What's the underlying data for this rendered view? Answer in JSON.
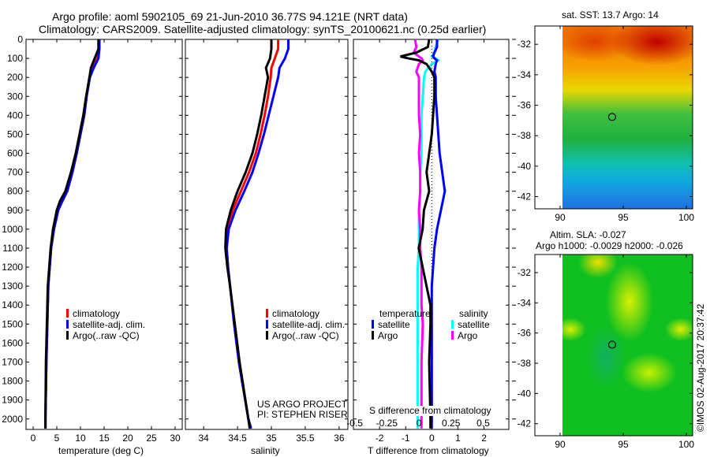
{
  "title": {
    "line1": "Argo profile: aoml 5902105_69 21-Jun-2010 36.77S 94.121E (NRT data)",
    "line2": "Climatology: CARS2009. Satellite-adjusted climatology: synTS_20100621.nc (0.25d earlier)"
  },
  "colors": {
    "climatology": "#ff0000",
    "satellite": "#0000ff",
    "argo": "#000000",
    "sal_satellite": "#00ffff",
    "sal_argo": "#ff00ff"
  },
  "chart_data": [
    {
      "type": "line",
      "name": "temperature-profile",
      "xlabel": "temperature (deg C)",
      "ylabel": "",
      "xlim": [
        -1.5,
        31.5
      ],
      "ylim": [
        2055,
        0
      ],
      "xticks": [
        "0",
        "5",
        "10",
        "15",
        "20",
        "25",
        "30"
      ],
      "yticks": [
        "0",
        "100",
        "200",
        "300",
        "400",
        "500",
        "600",
        "700",
        "800",
        "900",
        "1000",
        "1100",
        "1200",
        "1300",
        "1400",
        "1500",
        "1600",
        "1700",
        "1800",
        "1900",
        "2000"
      ],
      "depth": [
        0,
        50,
        100,
        150,
        200,
        300,
        400,
        500,
        600,
        700,
        800,
        850,
        900,
        1000,
        1100,
        1200,
        1300,
        1500,
        1700,
        2000,
        2050
      ],
      "series": [
        {
          "name": "climatology",
          "values": [
            13.9,
            13.9,
            13.6,
            12.6,
            11.9,
            11.3,
            10.8,
            10.0,
            9.2,
            8.3,
            7.2,
            6.2,
            5.3,
            4.4,
            3.8,
            3.5,
            3.2,
            3.0,
            2.8,
            2.6,
            2.6
          ]
        },
        {
          "name": "satellite-adj. clim.",
          "values": [
            14.0,
            14.0,
            13.8,
            12.8,
            12.0,
            11.3,
            10.8,
            10.0,
            9.2,
            8.3,
            7.2,
            6.2,
            5.3,
            4.4,
            3.8,
            3.5,
            3.2,
            3.0,
            2.8,
            2.6,
            2.6
          ]
        },
        {
          "name": "Argo(..raw -QC)",
          "values": [
            13.8,
            13.8,
            13.0,
            12.2,
            11.9,
            11.2,
            10.6,
            9.8,
            9.0,
            8.0,
            6.8,
            5.7,
            5.0,
            4.2,
            3.7,
            3.4,
            3.1,
            2.9,
            2.7,
            2.6,
            2.6
          ]
        }
      ],
      "legend": [
        "climatology",
        "satellite-adj. clim.",
        "Argo(..raw -QC)"
      ]
    },
    {
      "type": "line",
      "name": "salinity-profile",
      "xlabel": "salinity",
      "xlim": [
        33.73,
        36.13
      ],
      "ylim": [
        2055,
        0
      ],
      "xticks": [
        "34",
        "34.5",
        "35",
        "35.5",
        "36"
      ],
      "depth": [
        0,
        50,
        100,
        150,
        200,
        300,
        400,
        500,
        600,
        700,
        800,
        900,
        1000,
        1100,
        1200,
        1300,
        1500,
        1700,
        2000,
        2050
      ],
      "series": [
        {
          "name": "climatology",
          "values": [
            35.1,
            35.1,
            35.05,
            35.0,
            34.99,
            34.95,
            34.9,
            34.84,
            34.77,
            34.67,
            34.55,
            34.43,
            34.36,
            34.34,
            34.36,
            34.39,
            34.45,
            34.52,
            34.66,
            34.7
          ]
        },
        {
          "name": "satellite-adj. clim.",
          "values": [
            35.25,
            35.25,
            35.2,
            35.12,
            35.1,
            35.03,
            34.96,
            34.89,
            34.81,
            34.72,
            34.6,
            34.47,
            34.37,
            34.34,
            34.36,
            34.39,
            34.45,
            34.52,
            34.66,
            34.7
          ]
        },
        {
          "name": "Argo(..raw -QC)",
          "values": [
            35.0,
            35.0,
            34.98,
            34.92,
            34.95,
            34.9,
            34.85,
            34.79,
            34.72,
            34.62,
            34.5,
            34.4,
            34.33,
            34.32,
            34.35,
            34.39,
            34.46,
            34.53,
            34.66,
            34.68
          ]
        }
      ],
      "legend": [
        "climatology",
        "satellite-adj. clim.",
        "Argo(..raw -QC)"
      ],
      "annotation": [
        "US ARGO PROJECT",
        "PI: STEPHEN RISER"
      ]
    },
    {
      "type": "line",
      "name": "difference-profile",
      "xlabel": "T difference from climatology",
      "xlabel2": "S difference from climatology",
      "xlim": [
        -3.0,
        2.95
      ],
      "slim": [
        -0.51,
        0.7
      ],
      "ylim": [
        2055,
        0
      ],
      "xticks": [
        "-2",
        "-1",
        "0",
        "1",
        "2"
      ],
      "xticks_values": [
        -2,
        -1,
        0,
        1,
        2
      ],
      "sticks": [
        "-0.5",
        "-0.25",
        "0",
        "0.25",
        "0.5"
      ],
      "sticks_values": [
        -0.5,
        -0.25,
        0,
        0.25,
        0.5
      ],
      "depth": [
        0,
        40,
        70,
        90,
        100,
        110,
        130,
        170,
        200,
        300,
        400,
        500,
        600,
        700,
        800,
        900,
        1000,
        1100,
        1200,
        1300,
        1400,
        1500,
        1700,
        2000,
        2050
      ],
      "series": [
        {
          "name": "temperature satellite",
          "kind": "T",
          "values": [
            0.2,
            0.2,
            0.1,
            0.05,
            0.1,
            0.2,
            0.15,
            0.1,
            0.15,
            0.15,
            0.2,
            0.25,
            0.3,
            0.4,
            0.5,
            0.35,
            0.2,
            0.1,
            0.05,
            0.0,
            0.0,
            0.0,
            0.0,
            0.0,
            0.0
          ]
        },
        {
          "name": "temperature Argo",
          "kind": "T",
          "values": [
            -0.1,
            -0.15,
            -0.6,
            -1.2,
            -0.9,
            -0.5,
            -0.2,
            0.0,
            0.1,
            0.1,
            0.05,
            0.0,
            -0.1,
            -0.2,
            -0.1,
            -0.3,
            -0.35,
            -0.5,
            -0.35,
            -0.2,
            -0.05,
            -0.05,
            -0.1,
            -0.05,
            -0.05
          ]
        },
        {
          "name": "salinity satellite",
          "kind": "S",
          "values": [
            0.15,
            0.13,
            0.12,
            0.1,
            0.13,
            0.15,
            0.1,
            0.05,
            0.04,
            0.03,
            0.02,
            0.02,
            0.02,
            0.01,
            0.01,
            0.0,
            0.0,
            0.0,
            -0.01,
            -0.01,
            -0.01,
            -0.01,
            -0.01,
            -0.01,
            -0.01
          ]
        },
        {
          "name": "salinity Argo",
          "kind": "S",
          "values": [
            -0.03,
            -0.02,
            -0.04,
            0.0,
            0.02,
            0.03,
            0.0,
            -0.02,
            0.0,
            0.0,
            0.0,
            0.01,
            0.0,
            0.01,
            0.01,
            0.0,
            0.01,
            0.01,
            0.02,
            0.02,
            0.02,
            0.03,
            0.02,
            0.02,
            0.02
          ]
        }
      ],
      "legend": {
        "temperature": "temperature",
        "salinity": "salinity",
        "satellite": "satellite",
        "argo": "Argo"
      }
    },
    {
      "type": "heatmap",
      "name": "sst-map",
      "title": "sat. SST: 13.7 Argo: 14",
      "xlim": [
        88,
        100.5
      ],
      "ylim": [
        -42.8,
        -30.8
      ],
      "xticks": [
        "90",
        "95",
        "100"
      ],
      "xticks_values": [
        90,
        95,
        100
      ],
      "yticks": [
        "-32",
        "-34",
        "-36",
        "-38",
        "-40",
        "-42"
      ],
      "yticks_values": [
        -32,
        -34,
        -36,
        -38,
        -40,
        -42
      ],
      "marker": {
        "lon": 94.121,
        "lat": -36.77
      }
    },
    {
      "type": "heatmap",
      "name": "sla-map",
      "title": "Altim. SLA: -0.027",
      "subtitle": "Argo h1000: -0.0029 h2000: -0.026",
      "xlim": [
        88,
        100.5
      ],
      "ylim": [
        -42.8,
        -30.8
      ],
      "xticks": [
        "90",
        "95",
        "100"
      ],
      "xticks_values": [
        90,
        95,
        100
      ],
      "yticks": [
        "-32",
        "-34",
        "-36",
        "-38",
        "-40",
        "-42"
      ],
      "yticks_values": [
        -32,
        -34,
        -36,
        -38,
        -40,
        -42
      ],
      "marker": {
        "lon": 94.121,
        "lat": -36.77
      }
    }
  ],
  "credit": "©IMOS 02-Aug-2017 20:37:42"
}
